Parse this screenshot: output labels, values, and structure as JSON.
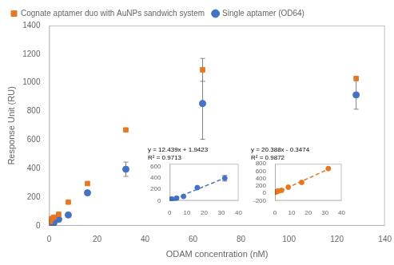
{
  "chart_data": [
    {
      "type": "scatter",
      "xlabel": "ODAM concentration (nM)",
      "ylabel": "Response Unit (RU)",
      "x": [
        0.5,
        1,
        2,
        4,
        8,
        16,
        32,
        64,
        128
      ],
      "series": [
        {
          "name": "Cognate aptamer duo with AuNPs sandwich system",
          "color": "#E87722",
          "marker": "square",
          "values": [
            30,
            50,
            60,
            80,
            165,
            295,
            670,
            1090,
            1030
          ],
          "errors": [
            0,
            0,
            0,
            0,
            0,
            0,
            0,
            80,
            0
          ]
        },
        {
          "name": "Single aptamer (OD64)",
          "color": "#4472C4",
          "marker": "circle",
          "values": [
            15,
            30,
            20,
            45,
            75,
            230,
            395,
            855,
            915
          ],
          "errors": [
            0,
            0,
            0,
            0,
            0,
            0,
            50,
            250,
            100
          ]
        }
      ],
      "xlim": [
        0,
        140
      ],
      "xticks": [
        0,
        20,
        40,
        60,
        80,
        100,
        120,
        140
      ],
      "ylim": [
        0,
        1400
      ],
      "yticks": [
        0,
        200,
        400,
        600,
        800,
        1000,
        1200,
        1400
      ],
      "legend": "upper left",
      "grid": false
    },
    {
      "type": "scatter",
      "annotations": [
        "y = 12.439x + 1.9423",
        "R² = 0.9713"
      ],
      "x": [
        0.5,
        1,
        2,
        4,
        8,
        16,
        32
      ],
      "series": [
        {
          "color": "#4472C4",
          "marker": "circle",
          "values": [
            15,
            30,
            20,
            45,
            75,
            230,
            395
          ],
          "errors": [
            0,
            0,
            0,
            0,
            0,
            0,
            50
          ]
        },
        {
          "type": "line",
          "line_style": "dashed",
          "color": "#4472C4",
          "x": [
            0,
            33
          ],
          "values": [
            1.9423,
            412.4293
          ]
        }
      ],
      "xlim": [
        0,
        40
      ],
      "xticks": [
        0,
        10,
        20,
        30,
        40
      ],
      "ylim": [
        0,
        650
      ],
      "yticks": [
        0,
        200,
        400,
        600
      ],
      "grid": false
    },
    {
      "type": "scatter",
      "annotations": [
        "y = 20.388x - 0.3474",
        "R² = 0.9872"
      ],
      "x": [
        0.5,
        1,
        2,
        4,
        8,
        16,
        32
      ],
      "series": [
        {
          "color": "#E87722",
          "marker": "circle",
          "values": [
            30,
            50,
            60,
            80,
            165,
            295,
            670
          ],
          "errors": [
            0,
            0,
            0,
            0,
            0,
            0,
            0
          ]
        },
        {
          "type": "line",
          "line_style": "dashed",
          "color": "#E87722",
          "x": [
            0,
            33
          ],
          "values": [
            -0.3474,
            672.4566
          ]
        }
      ],
      "xlim": [
        0,
        40
      ],
      "xticks": [
        0,
        10,
        20,
        30,
        40
      ],
      "ylim": [
        -200,
        800
      ],
      "yticks": [
        -200,
        0,
        200,
        400,
        600,
        800
      ],
      "grid": false
    }
  ]
}
